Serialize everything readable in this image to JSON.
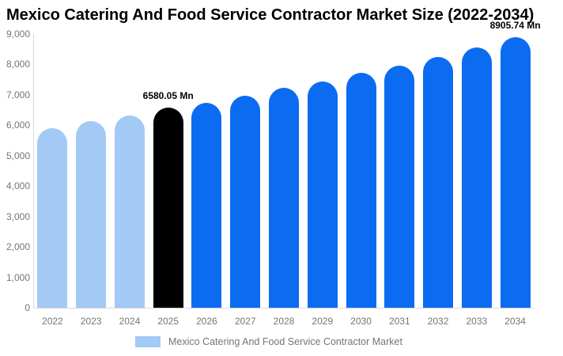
{
  "title": "Mexico Catering And Food Service Contractor Market Size (2022-2034)",
  "legend": {
    "label": "Mexico Catering And Food Service Contractor Market"
  },
  "colors": {
    "historical": "#a3c9f5",
    "highlight": "#000000",
    "forecast": "#0b6cf2",
    "axis_line": "#d9d9d9",
    "tick_text": "#757575",
    "data_label_text": "#000000"
  },
  "chart_data": {
    "type": "bar",
    "title": "Mexico Catering And Food Service Contractor Market Size (2022-2034)",
    "unit": "Mn",
    "categories": [
      "2022",
      "2023",
      "2024",
      "2025",
      "2026",
      "2027",
      "2028",
      "2029",
      "2030",
      "2031",
      "2032",
      "2033",
      "2034"
    ],
    "values": [
      5900,
      6140,
      6320,
      6580.05,
      6740,
      6980,
      7230,
      7440,
      7725,
      7950,
      8245,
      8560,
      8905.74
    ],
    "bar_roles": [
      "historical",
      "historical",
      "historical",
      "highlight",
      "forecast",
      "forecast",
      "forecast",
      "forecast",
      "forecast",
      "forecast",
      "forecast",
      "forecast",
      "forecast"
    ],
    "data_labels": [
      {
        "category": "2025",
        "text": "6580.05 Mn"
      },
      {
        "category": "2034",
        "text": "8905.74 Mn"
      }
    ],
    "xlabel": "",
    "ylabel": "",
    "ylim": [
      0,
      9000
    ],
    "ytick_values": [
      0,
      1000,
      2000,
      3000,
      4000,
      5000,
      6000,
      7000,
      8000,
      9000
    ],
    "ytick_labels": [
      "0",
      "1,000",
      "2,000",
      "3,000",
      "4,000",
      "5,000",
      "6,000",
      "7,000",
      "8,000",
      "9,000"
    ],
    "grid": false,
    "legend_position": "bottom",
    "legend_entries": [
      "Mexico Catering And Food Service Contractor Market"
    ]
  }
}
